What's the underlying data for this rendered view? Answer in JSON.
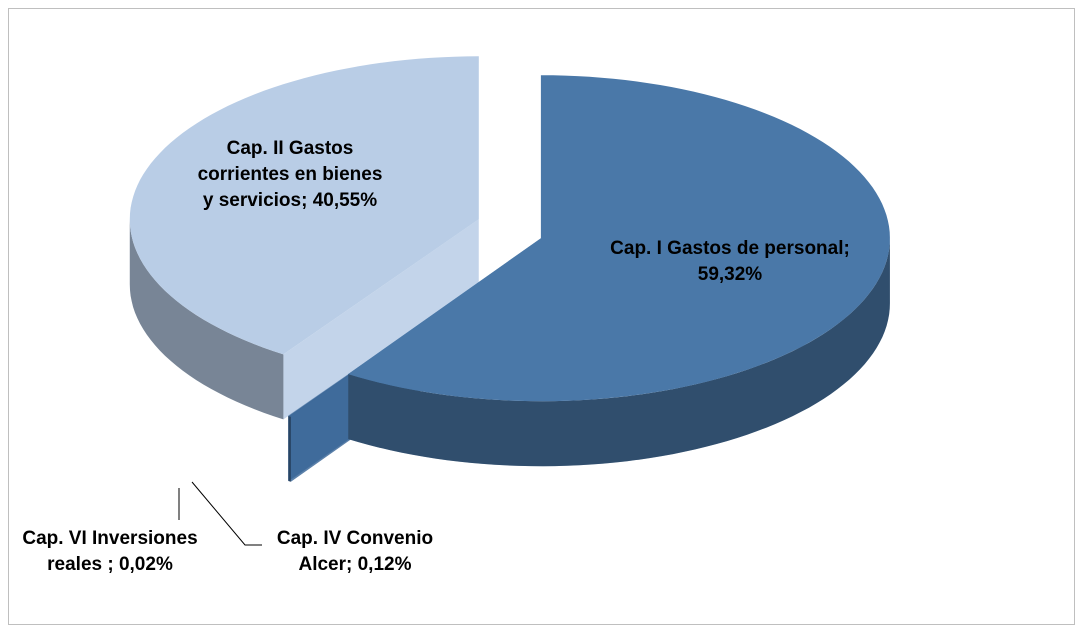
{
  "chart_data": {
    "type": "pie",
    "values": [
      59.32,
      0.12,
      0.02,
      40.55
    ],
    "value_labels": [
      "Cap. I Gastos de personal; 59,32%",
      "Cap. IV Convenio Alcer; 0,12%",
      "Cap. VI Inversiones reales ; 0,02%",
      "Cap. II Gastos corrientes en bienes y servicios; 40,55%"
    ],
    "colors": [
      "#4a78a8",
      "#3e6a9a",
      "#6f90b8",
      "#b9cde6"
    ]
  }
}
